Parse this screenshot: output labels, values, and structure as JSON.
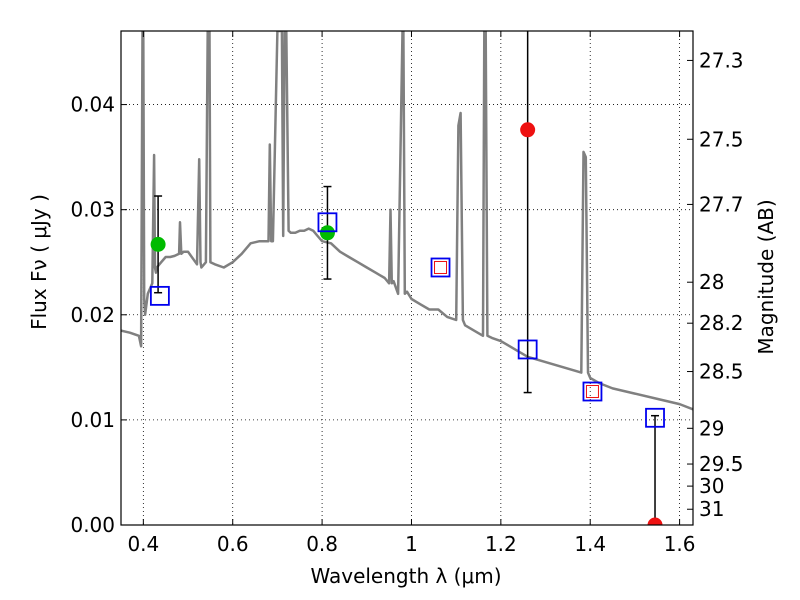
{
  "chart_data": {
    "type": "scatter",
    "xlabel": "Wavelength  λ (μm)",
    "ylabel": "Flux  Fν ( μJy )",
    "y2label": "Magnitude (AB)",
    "xlim": [
      0.35,
      1.63
    ],
    "ylim": [
      0.0,
      0.047
    ],
    "grid": true,
    "x_ticks": [
      0.4,
      0.6,
      0.8,
      1.0,
      1.2,
      1.4,
      1.6
    ],
    "x_tick_labels": [
      "0.4",
      "0.6",
      "0.8",
      "1",
      "1.2",
      "1.4",
      "1.6"
    ],
    "y_ticks": [
      0.0,
      0.01,
      0.02,
      0.03,
      0.04
    ],
    "y_tick_labels": [
      "0.00",
      "0.01",
      "0.02",
      "0.03",
      "0.04"
    ],
    "y2_ticks": [
      {
        "label": "27.3",
        "flux": 0.0442
      },
      {
        "label": "27.5",
        "flux": 0.0367
      },
      {
        "label": "27.7",
        "flux": 0.0305
      },
      {
        "label": "28",
        "flux": 0.0231
      },
      {
        "label": "28.2",
        "flux": 0.0192
      },
      {
        "label": "28.5",
        "flux": 0.0146
      },
      {
        "label": "29",
        "flux": 0.0092
      },
      {
        "label": "29.5",
        "flux": 0.0058
      },
      {
        "label": "30",
        "flux": 0.0037
      },
      {
        "label": "31",
        "flux": 0.0015
      }
    ],
    "series": [
      {
        "kind": "line",
        "color": "#808080",
        "x": [
          0.35,
          0.37,
          0.39,
          0.395,
          0.398,
          0.4,
          0.402,
          0.404,
          0.41,
          0.42,
          0.424,
          0.426,
          0.428,
          0.43,
          0.44,
          0.45,
          0.46,
          0.47,
          0.48,
          0.482,
          0.485,
          0.49,
          0.5,
          0.52,
          0.525,
          0.528,
          0.53,
          0.54,
          0.544,
          0.548,
          0.55,
          0.56,
          0.58,
          0.6,
          0.62,
          0.64,
          0.66,
          0.68,
          0.683,
          0.686,
          0.69,
          0.7,
          0.71,
          0.713,
          0.716,
          0.72,
          0.725,
          0.73,
          0.74,
          0.75,
          0.76,
          0.77,
          0.78,
          0.79,
          0.8,
          0.82,
          0.84,
          0.86,
          0.88,
          0.9,
          0.92,
          0.94,
          0.95,
          0.953,
          0.956,
          0.96,
          0.97,
          0.98,
          0.982,
          0.985,
          0.99,
          1.0,
          1.02,
          1.04,
          1.06,
          1.08,
          1.1,
          1.105,
          1.11,
          1.115,
          1.12,
          1.14,
          1.16,
          1.163,
          1.166,
          1.17,
          1.18,
          1.2,
          1.22,
          1.24,
          1.26,
          1.3,
          1.34,
          1.38,
          1.385,
          1.39,
          1.395,
          1.4,
          1.42,
          1.45,
          1.5,
          1.55,
          1.6,
          1.63
        ],
        "y": [
          0.0185,
          0.0183,
          0.018,
          0.017,
          0.047,
          0.047,
          0.0215,
          0.02,
          0.022,
          0.023,
          0.0352,
          0.0245,
          0.024,
          0.0245,
          0.025,
          0.0255,
          0.0255,
          0.0256,
          0.0258,
          0.0288,
          0.0258,
          0.026,
          0.026,
          0.0248,
          0.0348,
          0.025,
          0.0245,
          0.025,
          0.047,
          0.047,
          0.025,
          0.0248,
          0.0245,
          0.025,
          0.0258,
          0.0268,
          0.027,
          0.027,
          0.0362,
          0.027,
          0.027,
          0.047,
          0.047,
          0.0275,
          0.047,
          0.047,
          0.028,
          0.0278,
          0.0278,
          0.028,
          0.028,
          0.0282,
          0.028,
          0.0275,
          0.027,
          0.0268,
          0.026,
          0.0255,
          0.025,
          0.0245,
          0.024,
          0.0235,
          0.023,
          0.03,
          0.023,
          0.0232,
          0.022,
          0.047,
          0.047,
          0.022,
          0.0222,
          0.0215,
          0.021,
          0.0205,
          0.0205,
          0.0198,
          0.0195,
          0.038,
          0.0392,
          0.0195,
          0.019,
          0.0185,
          0.018,
          0.047,
          0.047,
          0.018,
          0.0178,
          0.0175,
          0.017,
          0.0165,
          0.016,
          0.0155,
          0.015,
          0.0145,
          0.0355,
          0.035,
          0.0145,
          0.014,
          0.0135,
          0.013,
          0.0125,
          0.012,
          0.0115,
          0.011
        ]
      },
      {
        "kind": "points",
        "name": "green",
        "marker": "circle",
        "color": "#00bb00",
        "x": [
          0.433,
          0.812
        ],
        "y": [
          0.0267,
          0.0278
        ],
        "yerr": [
          0.0046,
          0.0044
        ]
      },
      {
        "kind": "points",
        "name": "red",
        "marker": "circle",
        "color": "#ee1111",
        "x": [
          1.26,
          1.545
        ],
        "y": [
          0.0376,
          0.0
        ],
        "yerr_low": [
          0.025,
          0.0
        ],
        "yerr_high": [
          0.015,
          0.0104
        ]
      },
      {
        "kind": "points",
        "name": "blue squares",
        "marker": "square",
        "color": "#0000ee",
        "x": [
          0.437,
          0.812,
          1.065,
          1.26,
          1.405,
          1.545
        ],
        "y": [
          0.0218,
          0.0288,
          0.0245,
          0.0167,
          0.0127,
          0.0102
        ]
      },
      {
        "kind": "points",
        "name": "red small squares",
        "marker": "small-square",
        "color": "#ee1111",
        "x": [
          1.065,
          1.405
        ],
        "y": [
          0.0245,
          0.0127
        ]
      }
    ]
  }
}
